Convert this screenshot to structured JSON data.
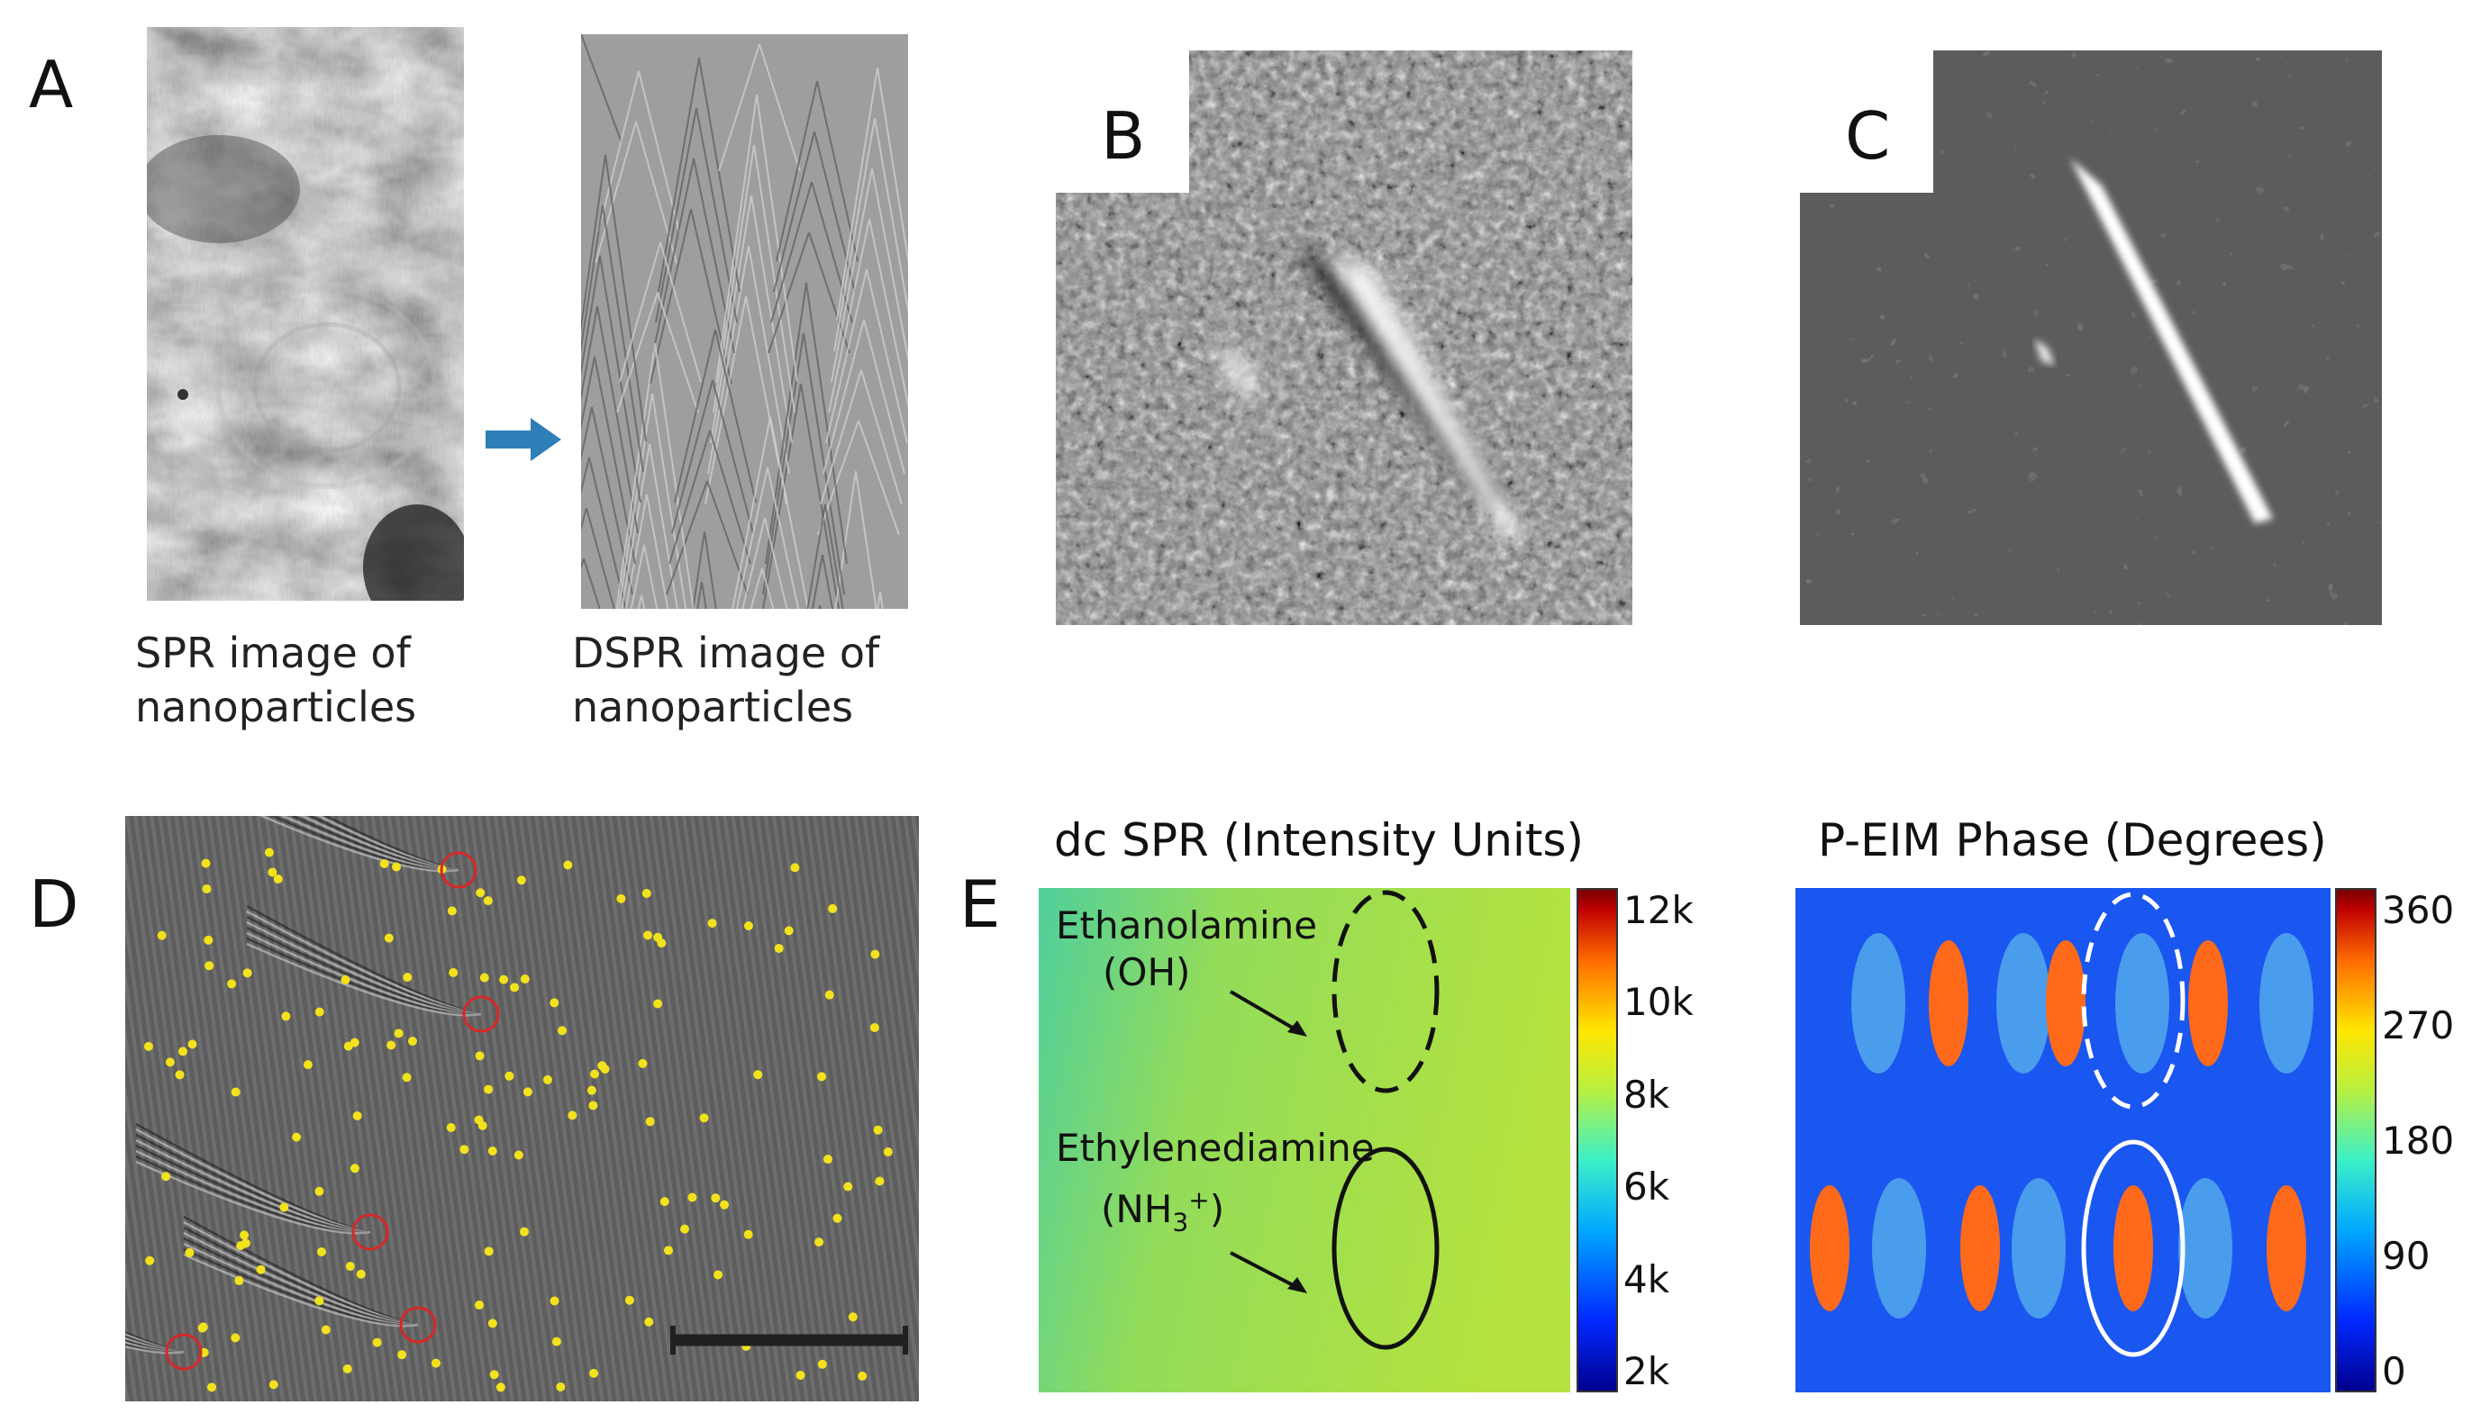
{
  "panels": {
    "A": {
      "letter": "A",
      "left_caption_line1": "SPR image of",
      "left_caption_line2": "nanoparticles",
      "right_caption_line1": "DSPR image of",
      "right_caption_line2": "nanoparticles",
      "arrow_color": "#2e7fb8"
    },
    "B": {
      "letter": "B"
    },
    "C": {
      "letter": "C"
    },
    "D": {
      "letter": "D",
      "marker_color": "#f2e21c",
      "circle_color": "#d62828"
    },
    "E": {
      "letter": "E",
      "left_title": "dc SPR (Intensity Units)",
      "left_label_1_line1": "Ethanolamine",
      "left_label_1_line2": "(OH)",
      "left_label_2_line1": "Ethylenediamine",
      "left_label_2_base": "(NH",
      "left_label_2_sub": "3",
      "left_label_2_sup": "+",
      "left_label_2_close": ")",
      "left_colorbar_ticks": [
        "12k",
        "10k",
        "8k",
        "6k",
        "4k",
        "2k"
      ],
      "right_title": "P-EIM Phase (Degrees)",
      "right_colorbar_ticks": [
        "360",
        "270",
        "180",
        "90",
        "0"
      ]
    }
  }
}
